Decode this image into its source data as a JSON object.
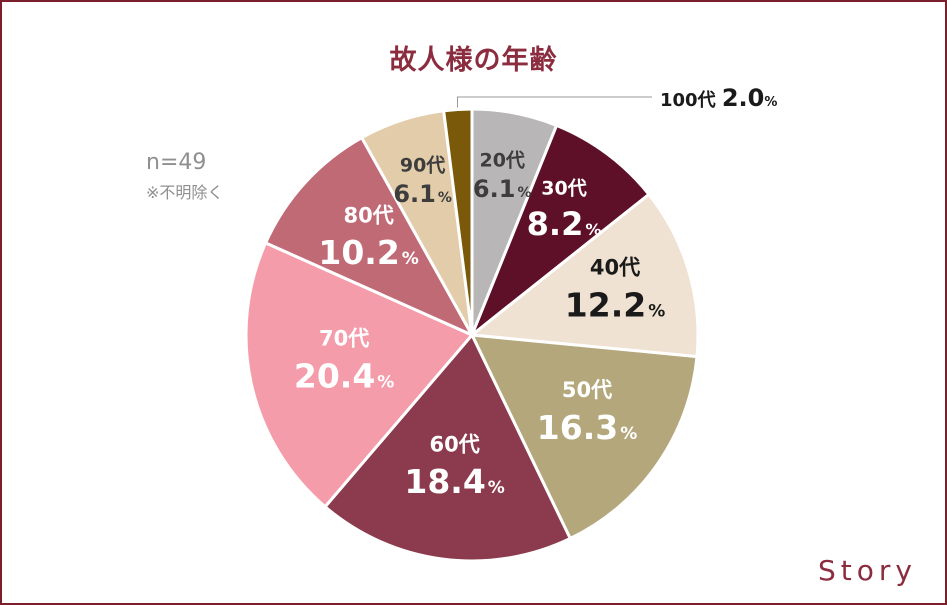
{
  "title": "故人様の年齢",
  "note": {
    "n": "n=49",
    "exclusion": "※不明除く"
  },
  "brand": "Story",
  "chart_data": {
    "type": "pie",
    "title": "故人様の年齢",
    "start": "12 o'clock, clockwise",
    "slices": [
      {
        "label": "20代",
        "value": 6.1,
        "display": "6.1",
        "unit": "%",
        "color": "#b9b6b8",
        "text_color": "#3d3d3d"
      },
      {
        "label": "30代",
        "value": 8.2,
        "display": "8.2",
        "unit": "%",
        "color": "#5e1028",
        "text_color": "#ffffff"
      },
      {
        "label": "40代",
        "value": 12.2,
        "display": "12.2",
        "unit": "%",
        "color": "#f0e2d2",
        "text_color": "#1a1a1a"
      },
      {
        "label": "50代",
        "value": 16.3,
        "display": "16.3",
        "unit": "%",
        "color": "#b3a77b",
        "text_color": "#ffffff"
      },
      {
        "label": "60代",
        "value": 18.4,
        "display": "18.4",
        "unit": "%",
        "color": "#8b3b4d",
        "text_color": "#ffffff"
      },
      {
        "label": "70代",
        "value": 20.4,
        "display": "20.4",
        "unit": "%",
        "color": "#f49caa",
        "text_color": "#ffffff"
      },
      {
        "label": "80代",
        "value": 10.2,
        "display": "10.2",
        "unit": "%",
        "color": "#c06a76",
        "text_color": "#ffffff"
      },
      {
        "label": "90代",
        "value": 6.1,
        "display": "6.1",
        "unit": "%",
        "color": "#e2ccaa",
        "text_color": "#3d3d3d"
      },
      {
        "label": "100代",
        "value": 2.0,
        "display": "2.0",
        "unit": "%",
        "color": "#7a5a0a",
        "text_color": "#1a1a1a",
        "callout": true
      }
    ]
  }
}
